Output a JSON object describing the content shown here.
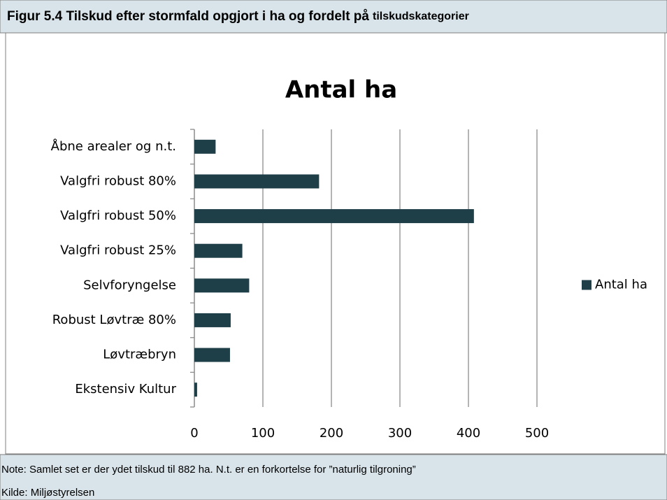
{
  "header": {
    "title": "Figur 5.4 Tilskud efter stormfald opgjort i ha og fordelt på",
    "title_end": "tilskudskategorier"
  },
  "chart_data": {
    "type": "hbar",
    "title": "Antal ha",
    "categories": [
      "Åbne arealer og n.t.",
      "Valgfri robust 80%",
      "Valgfri robust 50%",
      "Valgfri robust 25%",
      "Selvforyngelse",
      "Robust Løvtræ 80%",
      "Løvtræbryn",
      "Ekstensiv Kultur"
    ],
    "series": [
      {
        "name": "Antal ha",
        "color": "#1f3f48",
        "values": [
          31,
          182,
          408,
          70,
          80,
          53,
          52,
          4
        ]
      }
    ],
    "xlim": [
      0,
      500
    ],
    "xticks": [
      0,
      100,
      200,
      300,
      400,
      500
    ],
    "grid": true,
    "legend": "right"
  },
  "footer": {
    "note": "Note: Samlet set er der ydet tilskud til 882 ha. N.t. er en forkortelse for ”naturlig tilgroning”",
    "source": "Kilde: Miljøstyrelsen"
  }
}
